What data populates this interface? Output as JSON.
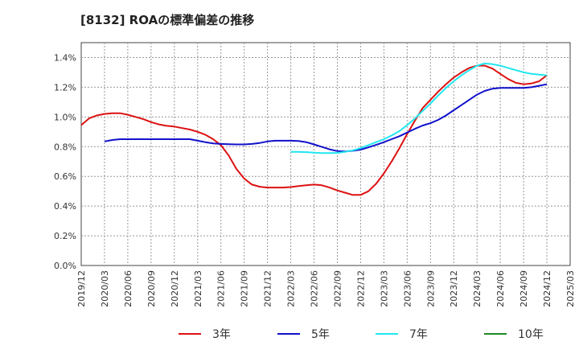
{
  "chart_data": {
    "type": "line",
    "title": "[8132]  ROAの標準偏差の推移",
    "xlabel": "",
    "ylabel": "",
    "ylim": [
      0,
      1.5
    ],
    "yticks": [
      "0.0%",
      "0.2%",
      "0.4%",
      "0.6%",
      "0.8%",
      "1.0%",
      "1.2%",
      "1.4%"
    ],
    "ytick_values": [
      0,
      0.2,
      0.4,
      0.6,
      0.8,
      1.0,
      1.2,
      1.4
    ],
    "xticks": [
      "2019/12",
      "2020/03",
      "2020/06",
      "2020/09",
      "2020/12",
      "2021/03",
      "2021/06",
      "2021/09",
      "2021/12",
      "2022/03",
      "2022/06",
      "2022/09",
      "2022/12",
      "2023/03",
      "2023/06",
      "2023/09",
      "2023/12",
      "2024/03",
      "2024/06",
      "2024/09",
      "2024/12",
      "2025/03"
    ],
    "grid": true,
    "legend_position": "bottom",
    "series": [
      {
        "name": "3年",
        "color": "#dd1111",
        "points": [
          [
            "2019/12",
            0.945
          ],
          [
            "2020/01",
            0.99
          ],
          [
            "2020/02",
            1.01
          ],
          [
            "2020/03",
            1.02
          ],
          [
            "2020/04",
            1.025
          ],
          [
            "2020/05",
            1.025
          ],
          [
            "2020/06",
            1.015
          ],
          [
            "2020/07",
            1.0
          ],
          [
            "2020/08",
            0.985
          ],
          [
            "2020/09",
            0.965
          ],
          [
            "2020/10",
            0.95
          ],
          [
            "2020/11",
            0.94
          ],
          [
            "2020/12",
            0.935
          ],
          [
            "2021/01",
            0.925
          ],
          [
            "2021/02",
            0.915
          ],
          [
            "2021/03",
            0.9
          ],
          [
            "2021/04",
            0.88
          ],
          [
            "2021/05",
            0.85
          ],
          [
            "2021/06",
            0.81
          ],
          [
            "2021/07",
            0.74
          ],
          [
            "2021/08",
            0.65
          ],
          [
            "2021/09",
            0.585
          ],
          [
            "2021/10",
            0.545
          ],
          [
            "2021/11",
            0.53
          ],
          [
            "2021/12",
            0.525
          ],
          [
            "2022/01",
            0.525
          ],
          [
            "2022/02",
            0.525
          ],
          [
            "2022/03",
            0.528
          ],
          [
            "2022/04",
            0.535
          ],
          [
            "2022/05",
            0.54
          ],
          [
            "2022/06",
            0.545
          ],
          [
            "2022/07",
            0.54
          ],
          [
            "2022/08",
            0.525
          ],
          [
            "2022/09",
            0.505
          ],
          [
            "2022/10",
            0.49
          ],
          [
            "2022/11",
            0.475
          ],
          [
            "2022/12",
            0.475
          ],
          [
            "2023/01",
            0.5
          ],
          [
            "2023/02",
            0.55
          ],
          [
            "2023/03",
            0.62
          ],
          [
            "2023/04",
            0.7
          ],
          [
            "2023/05",
            0.79
          ],
          [
            "2023/06",
            0.885
          ],
          [
            "2023/07",
            0.975
          ],
          [
            "2023/08",
            1.06
          ],
          [
            "2023/09",
            1.115
          ],
          [
            "2023/10",
            1.17
          ],
          [
            "2023/11",
            1.22
          ],
          [
            "2023/12",
            1.265
          ],
          [
            "2024/01",
            1.3
          ],
          [
            "2024/02",
            1.33
          ],
          [
            "2024/03",
            1.345
          ],
          [
            "2024/04",
            1.345
          ],
          [
            "2024/05",
            1.325
          ],
          [
            "2024/06",
            1.29
          ],
          [
            "2024/07",
            1.255
          ],
          [
            "2024/08",
            1.23
          ],
          [
            "2024/09",
            1.22
          ],
          [
            "2024/10",
            1.225
          ],
          [
            "2024/11",
            1.24
          ],
          [
            "2024/12",
            1.28
          ]
        ]
      },
      {
        "name": "5年",
        "color": "#1111cc",
        "points": [
          [
            "2020/03",
            0.835
          ],
          [
            "2020/04",
            0.845
          ],
          [
            "2020/05",
            0.85
          ],
          [
            "2020/06",
            0.85
          ],
          [
            "2020/07",
            0.85
          ],
          [
            "2020/08",
            0.85
          ],
          [
            "2020/09",
            0.85
          ],
          [
            "2020/10",
            0.85
          ],
          [
            "2020/11",
            0.85
          ],
          [
            "2020/12",
            0.85
          ],
          [
            "2021/01",
            0.85
          ],
          [
            "2021/02",
            0.85
          ],
          [
            "2021/03",
            0.84
          ],
          [
            "2021/04",
            0.83
          ],
          [
            "2021/05",
            0.822
          ],
          [
            "2021/06",
            0.818
          ],
          [
            "2021/07",
            0.816
          ],
          [
            "2021/08",
            0.815
          ],
          [
            "2021/09",
            0.815
          ],
          [
            "2021/10",
            0.818
          ],
          [
            "2021/11",
            0.825
          ],
          [
            "2021/12",
            0.835
          ],
          [
            "2022/01",
            0.84
          ],
          [
            "2022/02",
            0.84
          ],
          [
            "2022/03",
            0.84
          ],
          [
            "2022/04",
            0.838
          ],
          [
            "2022/05",
            0.83
          ],
          [
            "2022/06",
            0.815
          ],
          [
            "2022/07",
            0.798
          ],
          [
            "2022/08",
            0.782
          ],
          [
            "2022/09",
            0.77
          ],
          [
            "2022/10",
            0.768
          ],
          [
            "2022/11",
            0.772
          ],
          [
            "2022/12",
            0.78
          ],
          [
            "2023/01",
            0.795
          ],
          [
            "2023/02",
            0.812
          ],
          [
            "2023/03",
            0.83
          ],
          [
            "2023/04",
            0.85
          ],
          [
            "2023/05",
            0.87
          ],
          [
            "2023/06",
            0.895
          ],
          [
            "2023/07",
            0.92
          ],
          [
            "2023/08",
            0.942
          ],
          [
            "2023/09",
            0.958
          ],
          [
            "2023/10",
            0.98
          ],
          [
            "2023/11",
            1.01
          ],
          [
            "2023/12",
            1.045
          ],
          [
            "2024/01",
            1.08
          ],
          [
            "2024/02",
            1.115
          ],
          [
            "2024/03",
            1.15
          ],
          [
            "2024/04",
            1.175
          ],
          [
            "2024/05",
            1.19
          ],
          [
            "2024/06",
            1.195
          ],
          [
            "2024/07",
            1.195
          ],
          [
            "2024/08",
            1.195
          ],
          [
            "2024/09",
            1.195
          ],
          [
            "2024/10",
            1.2
          ],
          [
            "2024/11",
            1.21
          ],
          [
            "2024/12",
            1.22
          ]
        ]
      },
      {
        "name": "7年",
        "color": "#22e6f0",
        "points": [
          [
            "2022/03",
            0.765
          ],
          [
            "2022/04",
            0.765
          ],
          [
            "2022/05",
            0.763
          ],
          [
            "2022/06",
            0.76
          ],
          [
            "2022/07",
            0.757
          ],
          [
            "2022/08",
            0.757
          ],
          [
            "2022/09",
            0.758
          ],
          [
            "2022/10",
            0.765
          ],
          [
            "2022/11",
            0.775
          ],
          [
            "2022/12",
            0.79
          ],
          [
            "2023/01",
            0.81
          ],
          [
            "2023/02",
            0.83
          ],
          [
            "2023/03",
            0.85
          ],
          [
            "2023/04",
            0.875
          ],
          [
            "2023/05",
            0.905
          ],
          [
            "2023/06",
            0.945
          ],
          [
            "2023/07",
            0.99
          ],
          [
            "2023/08",
            1.04
          ],
          [
            "2023/09",
            1.09
          ],
          [
            "2023/10",
            1.145
          ],
          [
            "2023/11",
            1.195
          ],
          [
            "2023/12",
            1.24
          ],
          [
            "2024/01",
            1.28
          ],
          [
            "2024/02",
            1.315
          ],
          [
            "2024/03",
            1.345
          ],
          [
            "2024/04",
            1.36
          ],
          [
            "2024/05",
            1.355
          ],
          [
            "2024/06",
            1.345
          ],
          [
            "2024/07",
            1.33
          ],
          [
            "2024/08",
            1.315
          ],
          [
            "2024/09",
            1.3
          ],
          [
            "2024/10",
            1.29
          ],
          [
            "2024/11",
            1.285
          ],
          [
            "2024/12",
            1.28
          ]
        ]
      },
      {
        "name": "10年",
        "color": "#228822",
        "points": []
      }
    ]
  }
}
